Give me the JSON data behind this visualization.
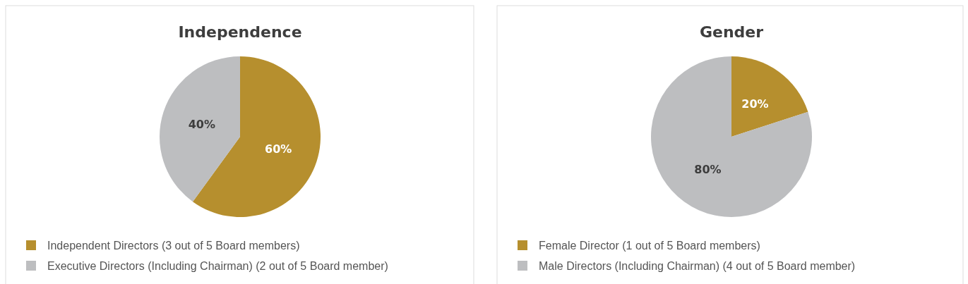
{
  "chart_data": [
    {
      "type": "pie",
      "title": "Independence",
      "categories": [
        "Independent Directors (3 out of 5 Board members)",
        "Executive Directors (Including Chairman) (2 out of 5 Board member)"
      ],
      "values": [
        60,
        40
      ],
      "colors": [
        "#b68f2e",
        "#bdbec0"
      ],
      "value_labels": [
        "60%",
        "40%"
      ],
      "legend": "bottom"
    },
    {
      "type": "pie",
      "title": "Gender",
      "categories": [
        "Female Director (1 out of 5 Board members)",
        "Male Directors (Including Chairman) (4 out of 5 Board member)"
      ],
      "values": [
        20,
        80
      ],
      "colors": [
        "#b68f2e",
        "#bdbec0"
      ],
      "value_labels": [
        "20%",
        "80%"
      ],
      "legend": "bottom"
    }
  ]
}
